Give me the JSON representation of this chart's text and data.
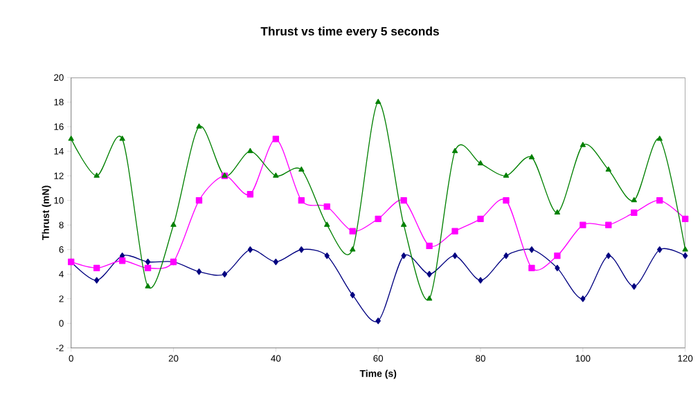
{
  "chart_data": {
    "type": "line",
    "title": "Thrust vs time every 5 seconds",
    "xlabel": "Time (s)",
    "ylabel": "Thrust (mN)",
    "x": [
      0,
      5,
      10,
      15,
      20,
      25,
      30,
      35,
      40,
      45,
      50,
      55,
      60,
      65,
      70,
      75,
      80,
      85,
      90,
      95,
      100,
      105,
      110,
      115,
      120
    ],
    "series": [
      {
        "color": "#000080",
        "marker": "diamond",
        "values": [
          5,
          3.5,
          5.5,
          5,
          5,
          4.2,
          4,
          6,
          5,
          6,
          5.5,
          2.3,
          0.2,
          5.5,
          4,
          5.5,
          3.5,
          5.5,
          6,
          4.5,
          2,
          5.5,
          3,
          6,
          5.5
        ]
      },
      {
        "color": "#ff00ff",
        "marker": "square",
        "values": [
          5,
          4.5,
          5.1,
          4.5,
          5,
          10,
          12,
          10.5,
          15,
          10,
          9.5,
          7.5,
          8.5,
          10,
          6.3,
          7.5,
          8.5,
          10,
          4.5,
          5.5,
          8,
          8,
          9,
          10,
          8.5
        ]
      },
      {
        "color": "#008000",
        "marker": "triangle",
        "values": [
          15,
          12,
          15,
          3,
          8,
          16,
          12,
          14,
          12,
          12.5,
          8,
          6,
          18,
          8,
          2,
          14,
          13,
          12,
          13.5,
          9,
          14.5,
          12.5,
          10,
          15,
          6
        ]
      }
    ],
    "xlim": [
      0,
      120
    ],
    "ylim": [
      -2,
      20
    ],
    "xticks": [
      0,
      20,
      40,
      60,
      80,
      100,
      120
    ],
    "yticks": [
      -2,
      0,
      2,
      4,
      6,
      8,
      10,
      12,
      14,
      16,
      18,
      20
    ]
  }
}
